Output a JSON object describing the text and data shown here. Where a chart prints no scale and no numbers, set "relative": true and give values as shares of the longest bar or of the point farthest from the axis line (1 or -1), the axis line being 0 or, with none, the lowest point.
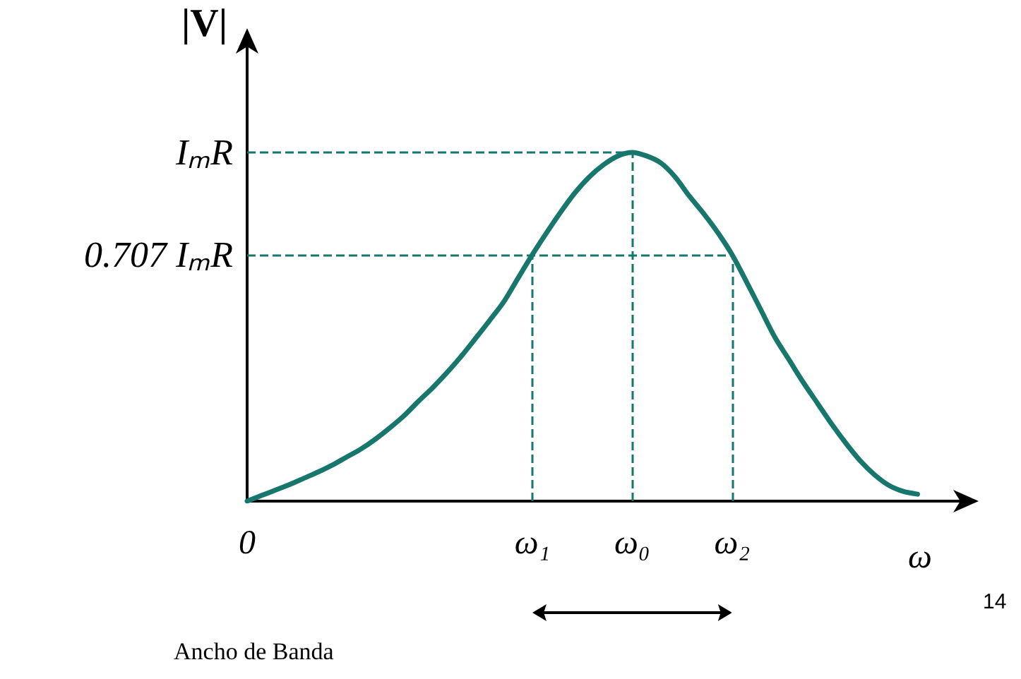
{
  "chart_data": {
    "type": "line",
    "xlabel": "ω",
    "ylabel": "|V|",
    "relative": true,
    "categories": [
      "0",
      null,
      null,
      null,
      null,
      null,
      null,
      null,
      null,
      null,
      null,
      null,
      null,
      null,
      null,
      null,
      null,
      null,
      null,
      null,
      "ω₁",
      null,
      null,
      null,
      null,
      null,
      null,
      "ω₀",
      null,
      null,
      null,
      null,
      null,
      null,
      "ω₂",
      null,
      null,
      null,
      null,
      null,
      null,
      null,
      null,
      null,
      null,
      null,
      null,
      null,
      null,
      null,
      null
    ],
    "series": [
      {
        "color": "#17776c",
        "values": [
          0,
          0.016,
          0.032,
          0.048,
          0.066,
          0.084,
          0.104,
          0.127,
          0.15,
          0.178,
          0.21,
          0.245,
          0.286,
          0.325,
          0.368,
          0.415,
          0.466,
          0.518,
          0.572,
          0.64,
          0.707,
          0.77,
          0.83,
          0.885,
          0.93,
          0.965,
          0.99,
          1,
          0.99,
          0.97,
          0.93,
          0.875,
          0.825,
          0.77,
          0.707,
          0.63,
          0.55,
          0.47,
          0.405,
          0.34,
          0.28,
          0.22,
          0.165,
          0.115,
          0.075,
          0.045,
          0.028,
          0.02,
          null,
          null,
          null
        ]
      }
    ],
    "ref_lines": [
      {
        "axis": "y",
        "value": 1,
        "label": "IₘR",
        "color": "#17776c",
        "line_style": "dashed"
      },
      {
        "axis": "y",
        "value": 0.707,
        "label": "0.707 IₘR",
        "color": "#17776c",
        "line_style": "dashed"
      },
      {
        "axis": "x",
        "value": "ω₁",
        "color": "#17776c",
        "line_style": "dashed"
      },
      {
        "axis": "x",
        "value": "ω₀",
        "color": "#17776c",
        "line_style": "dashed"
      },
      {
        "axis": "x",
        "value": "ω₂",
        "color": "#17776c",
        "line_style": "dashed"
      }
    ],
    "annotations": [
      "Ancho de Banda",
      "14"
    ],
    "grid": false,
    "marker": "none",
    "line_style": "solid"
  }
}
